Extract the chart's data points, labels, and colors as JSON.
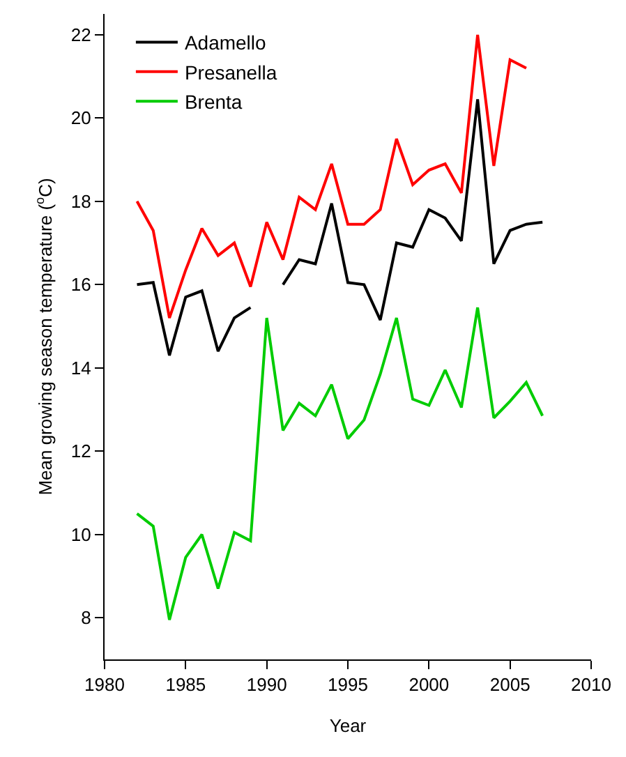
{
  "chart_data": {
    "type": "line",
    "xlabel": "Year",
    "ylabel": "Mean growing season temperature ($^{o}$C)",
    "x": [
      1982,
      1983,
      1984,
      1985,
      1986,
      1987,
      1988,
      1989,
      1990,
      1991,
      1992,
      1993,
      1994,
      1995,
      1996,
      1997,
      1998,
      1999,
      2000,
      2001,
      2002,
      2003,
      2004,
      2005,
      2006,
      2007
    ],
    "series": [
      {
        "name": "Adamello",
        "color": "#000000",
        "values": [
          16.0,
          16.05,
          14.3,
          15.7,
          15.85,
          14.4,
          15.2,
          15.45,
          null,
          16.0,
          16.6,
          16.5,
          17.95,
          16.05,
          16.0,
          15.15,
          17.0,
          16.9,
          17.8,
          17.6,
          17.05,
          20.45,
          16.5,
          17.3,
          17.45,
          17.5
        ]
      },
      {
        "name": "Presanella",
        "color": "#ff0000",
        "values": [
          18.0,
          17.3,
          15.2,
          16.35,
          17.35,
          16.7,
          17.0,
          15.95,
          17.5,
          16.6,
          18.1,
          17.8,
          18.9,
          17.45,
          17.45,
          17.8,
          19.5,
          18.4,
          18.75,
          18.9,
          18.2,
          22.0,
          18.85,
          21.4,
          21.2,
          null
        ]
      },
      {
        "name": "Brenta",
        "color": "#00cc00",
        "values": [
          10.5,
          10.2,
          7.95,
          9.45,
          10.0,
          8.7,
          10.05,
          9.85,
          15.2,
          12.5,
          13.15,
          12.85,
          13.6,
          12.3,
          12.75,
          13.85,
          15.2,
          13.25,
          13.1,
          13.95,
          13.05,
          15.45,
          12.8,
          13.2,
          13.65,
          12.85
        ]
      }
    ],
    "xlim": [
      1980,
      2010
    ],
    "xticks": [
      1980,
      1985,
      1990,
      1995,
      2000,
      2005,
      2010
    ],
    "ylim": [
      7,
      22.5
    ],
    "yticks": [
      8,
      10,
      12,
      14,
      16,
      18,
      20,
      22
    ],
    "legend": "top left",
    "marker": "none",
    "line_style": "solid"
  }
}
